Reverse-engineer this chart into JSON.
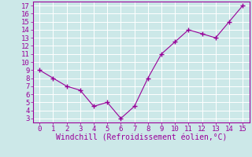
{
  "x": [
    0,
    1,
    2,
    3,
    4,
    5,
    6,
    7,
    8,
    9,
    10,
    11,
    12,
    13,
    14,
    15
  ],
  "y": [
    9,
    8,
    7,
    6.5,
    4.5,
    5,
    3,
    4.5,
    8,
    11,
    12.5,
    14,
    13.5,
    13,
    15,
    17
  ],
  "line_color": "#990099",
  "marker": "+",
  "marker_size": 4,
  "background_color": "#cce8e8",
  "grid_color": "#ffffff",
  "xlabel": "Windchill (Refroidissement éolien,°C)",
  "xlabel_fontsize": 7,
  "ylabel_ticks": [
    3,
    4,
    5,
    6,
    7,
    8,
    9,
    10,
    11,
    12,
    13,
    14,
    15,
    16,
    17
  ],
  "xlim": [
    -0.5,
    15.5
  ],
  "ylim": [
    2.5,
    17.5
  ],
  "xticks": [
    0,
    1,
    2,
    3,
    4,
    5,
    6,
    7,
    8,
    9,
    10,
    11,
    12,
    13,
    14,
    15
  ],
  "tick_fontsize": 6.5,
  "tick_color": "#990099",
  "spine_color": "#990099",
  "line_width": 0.8,
  "marker_edge_width": 1.0
}
